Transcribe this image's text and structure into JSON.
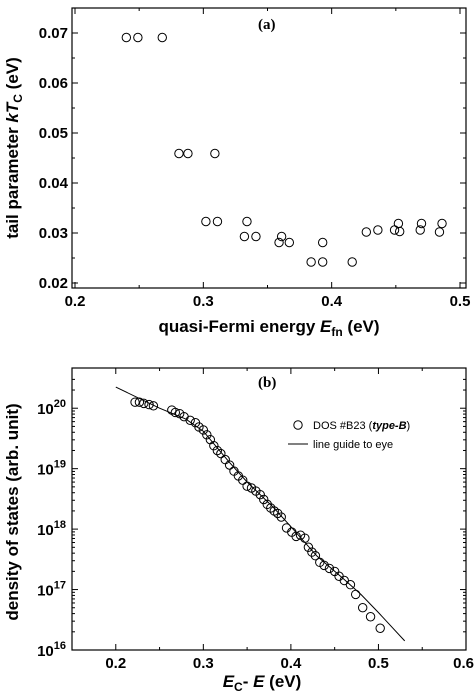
{
  "chart_data": [
    {
      "type": "scatter",
      "panel_label": "(a)",
      "xlabel_main": "quasi-Fermi energy ",
      "xlabel_symbol": "E",
      "xlabel_sub": "fn",
      "xlabel_unit": " (eV)",
      "ylabel_main": "tail parameter ",
      "ylabel_symbol": "kT",
      "ylabel_sub": "C",
      "ylabel_unit": " (eV)",
      "xlim": [
        0.2,
        0.5
      ],
      "ylim": [
        0.02,
        0.07
      ],
      "xticks": [
        0.2,
        0.3,
        0.4,
        0.5
      ],
      "xtick_labels": [
        "0.2",
        "0.3",
        "0.4",
        "0.5"
      ],
      "yticks": [
        0.02,
        0.03,
        0.04,
        0.05,
        0.06,
        0.07
      ],
      "ytick_labels": [
        "0.02",
        "0.03",
        "0.04",
        "0.05",
        "0.06",
        "0.07"
      ],
      "grid": false,
      "series": [
        {
          "marker": "open-circle",
          "x": [
            0.24,
            0.249,
            0.268,
            0.281,
            0.288,
            0.309,
            0.302,
            0.311,
            0.334,
            0.332,
            0.341,
            0.359,
            0.361,
            0.367,
            0.384,
            0.393,
            0.393,
            0.416,
            0.427,
            0.436,
            0.449,
            0.453,
            0.452,
            0.47,
            0.469,
            0.484,
            0.486
          ],
          "y": [
            0.0691,
            0.0691,
            0.0691,
            0.0459,
            0.0459,
            0.0459,
            0.0323,
            0.0323,
            0.0323,
            0.0293,
            0.0293,
            0.0281,
            0.0293,
            0.0281,
            0.0242,
            0.0242,
            0.0281,
            0.0242,
            0.0302,
            0.0306,
            0.0306,
            0.0303,
            0.0319,
            0.0319,
            0.0306,
            0.0302,
            0.0319
          ]
        }
      ]
    },
    {
      "type": "scatter",
      "panel_label": "(b)",
      "xlabel_symbol1": "E",
      "xlabel_sub": "C",
      "xlabel_dash": "- ",
      "xlabel_symbol2": "E",
      "xlabel_unit": " (eV)",
      "ylabel": "density of states (arb. unit)",
      "xlim": [
        0.15,
        0.6
      ],
      "ylim_log10": [
        16,
        20.5
      ],
      "yscale": "log",
      "xticks": [
        0.2,
        0.3,
        0.4,
        0.5,
        0.6
      ],
      "xtick_labels": [
        "0.2",
        "0.3",
        "0.4",
        "0.5",
        "0.6"
      ],
      "yticks_base": "10",
      "yticks_exp": [
        "16",
        "17",
        "18",
        "19",
        "20"
      ],
      "grid": false,
      "legend_position": "top-right",
      "series": [
        {
          "name_prefix": "DOS #B23 (",
          "name_italic": "type-B",
          "name_suffix": ")",
          "marker": "open-circle",
          "x": [
            0.222,
            0.227,
            0.232,
            0.238,
            0.243,
            0.264,
            0.268,
            0.273,
            0.278,
            0.285,
            0.291,
            0.295,
            0.3,
            0.304,
            0.308,
            0.312,
            0.316,
            0.32,
            0.325,
            0.33,
            0.335,
            0.34,
            0.345,
            0.35,
            0.355,
            0.36,
            0.365,
            0.369,
            0.373,
            0.377,
            0.381,
            0.385,
            0.389,
            0.395,
            0.401,
            0.406,
            0.411,
            0.416,
            0.42,
            0.424,
            0.428,
            0.433,
            0.438,
            0.444,
            0.45,
            0.455,
            0.461,
            0.468,
            0.474,
            0.482,
            0.491,
            0.502
          ],
          "y_log10": [
            20.1,
            20.1,
            20.08,
            20.06,
            20.04,
            19.97,
            19.93,
            19.91,
            19.86,
            19.8,
            19.76,
            19.69,
            19.64,
            19.56,
            19.48,
            19.38,
            19.3,
            19.25,
            19.15,
            19.06,
            18.96,
            18.88,
            18.81,
            18.71,
            18.68,
            18.63,
            18.57,
            18.49,
            18.41,
            18.35,
            18.3,
            18.26,
            18.2,
            18.02,
            17.95,
            17.88,
            17.9,
            17.85,
            17.7,
            17.62,
            17.56,
            17.45,
            17.4,
            17.35,
            17.3,
            17.22,
            17.15,
            17.08,
            16.92,
            16.7,
            16.55,
            16.36
          ]
        },
        {
          "name": "line guide to eye",
          "line": "solid",
          "x": [
            0.2,
            0.25,
            0.28,
            0.3,
            0.33,
            0.35,
            0.38,
            0.4,
            0.43,
            0.46,
            0.48,
            0.5,
            0.53
          ],
          "y_log10": [
            20.35,
            20.0,
            19.82,
            19.62,
            19.1,
            18.78,
            18.36,
            18.04,
            17.55,
            17.18,
            16.92,
            16.62,
            16.15
          ]
        }
      ]
    }
  ]
}
